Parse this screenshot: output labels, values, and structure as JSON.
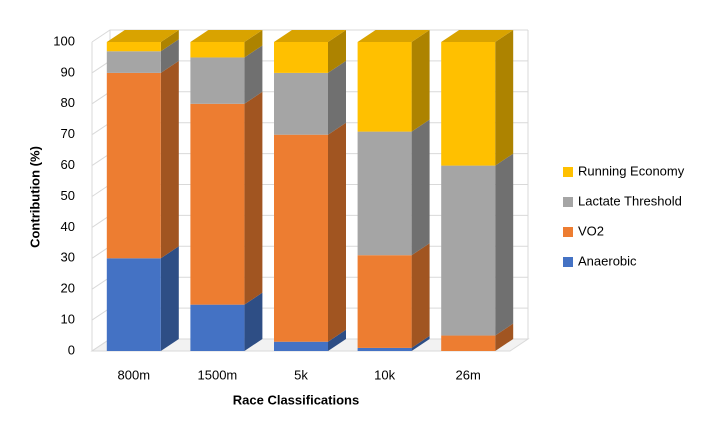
{
  "chart_data": {
    "type": "bar",
    "stacked": true,
    "y_label": "Contribution (%)",
    "x_label": "Race Classifications",
    "categories": [
      "800m",
      "1500m",
      "5k",
      "10k",
      "26m"
    ],
    "series": [
      {
        "name": "Anaerobic",
        "color": "#4472c4",
        "values": [
          30,
          15,
          3,
          1,
          0
        ]
      },
      {
        "name": "VO2",
        "color": "#ed7d31",
        "values": [
          60,
          65,
          67,
          30,
          5
        ]
      },
      {
        "name": "Lactate Threshold",
        "color": "#a5a5a5",
        "values": [
          7,
          15,
          20,
          40,
          55
        ]
      },
      {
        "name": "Running Economy",
        "color": "#ffc000",
        "values": [
          3,
          5,
          10,
          29,
          40
        ]
      }
    ],
    "ylim": [
      0,
      100
    ],
    "yticks": [
      0,
      10,
      20,
      30,
      40,
      50,
      60,
      70,
      80,
      90,
      100
    ],
    "grid": true,
    "legend": "right"
  }
}
